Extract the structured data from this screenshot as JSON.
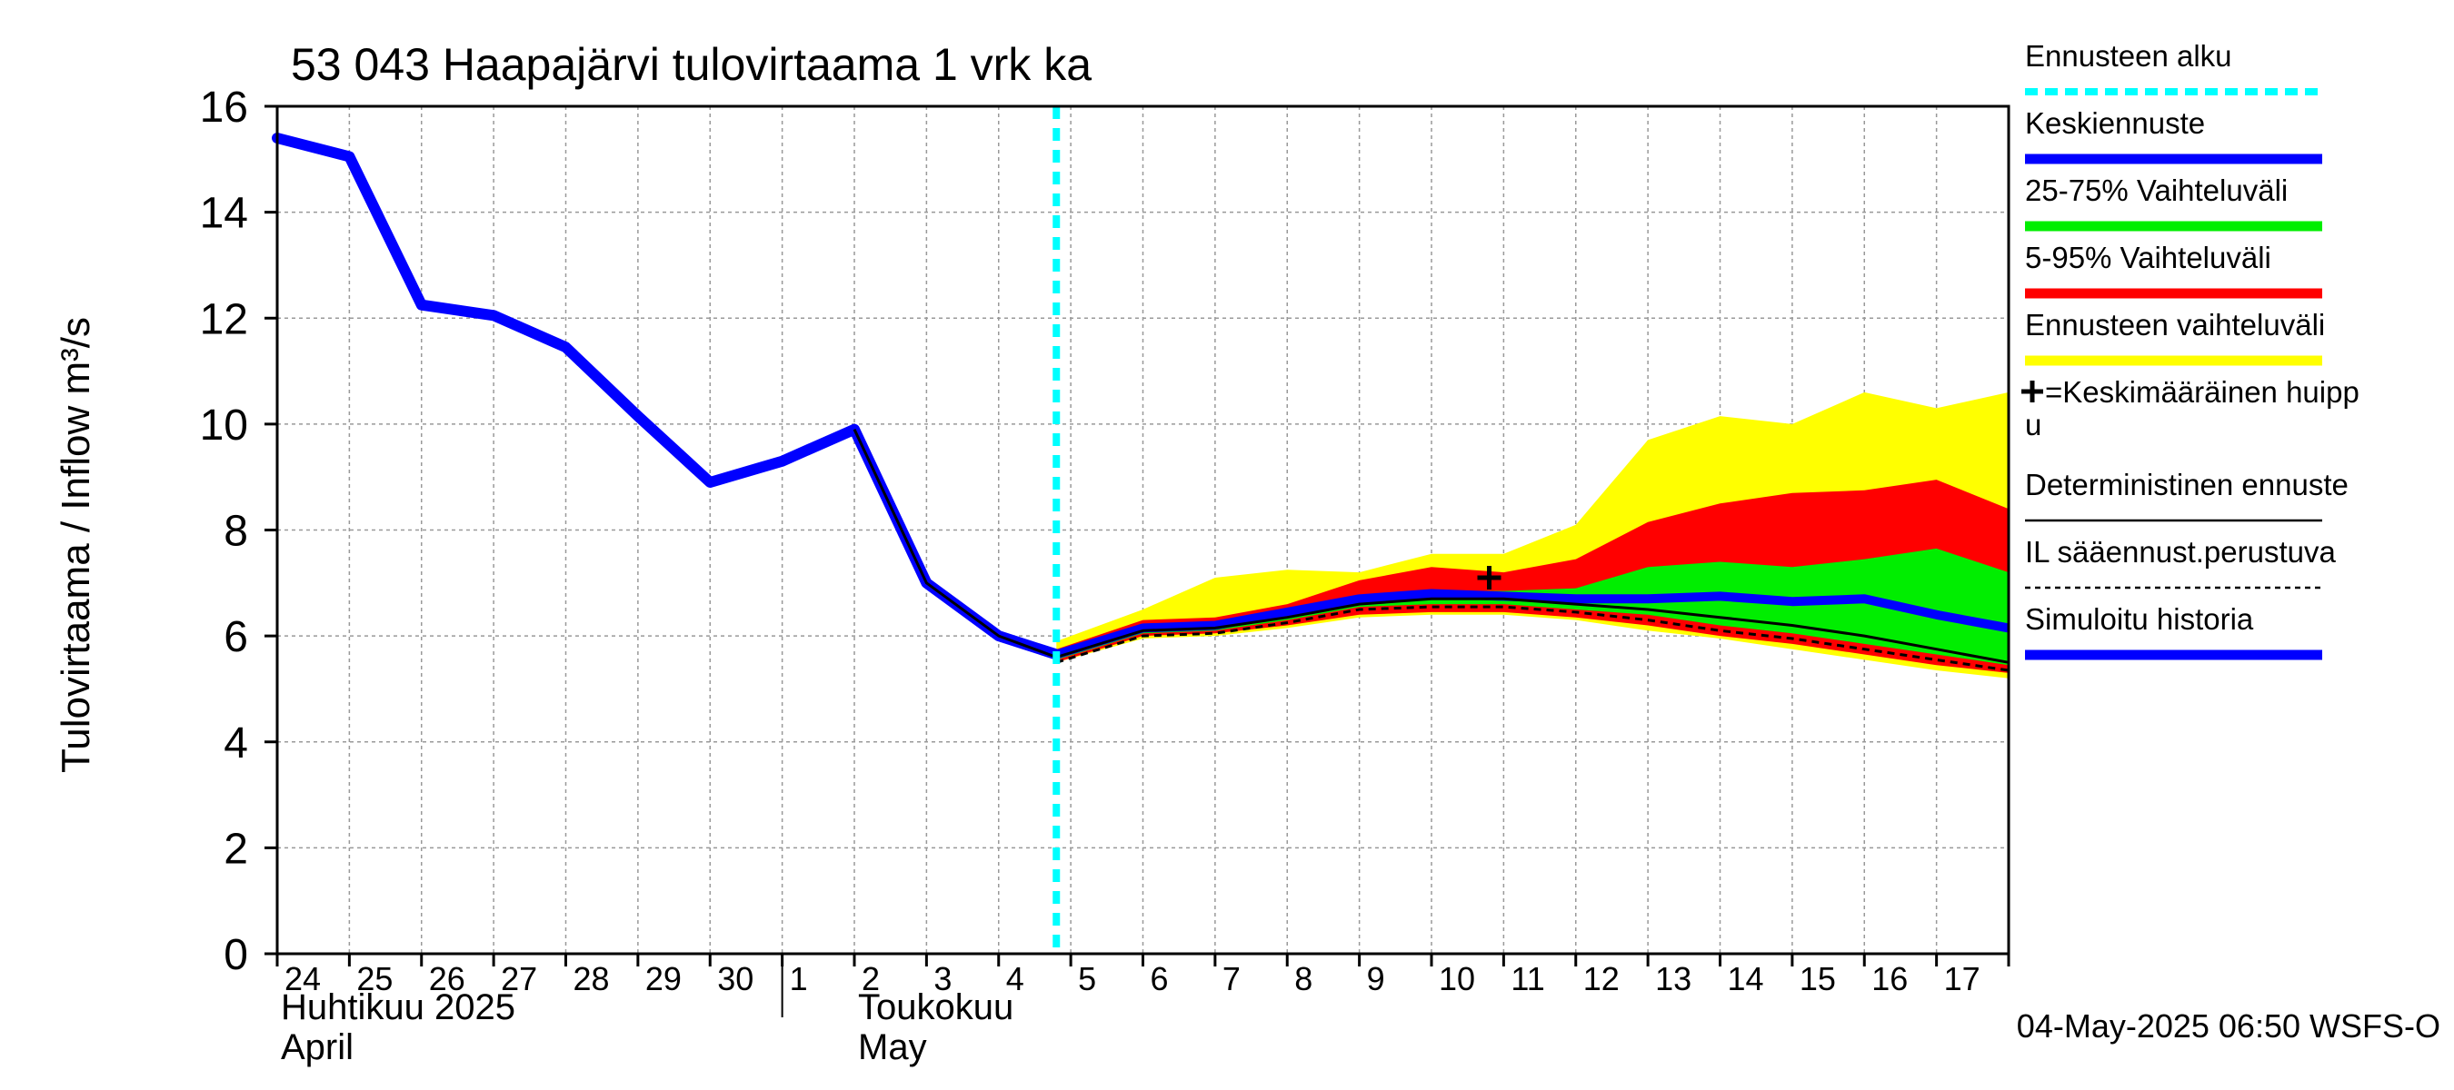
{
  "chart_data": {
    "type": "area",
    "title": "53 043 Haapajärvi tulovirtaama 1 vrk ka",
    "ylabel": "Tulovirtaama / Inflow    m³/s",
    "ylim": [
      0,
      16
    ],
    "yticks": [
      0,
      2,
      4,
      6,
      8,
      10,
      12,
      14,
      16
    ],
    "grid": true,
    "legend_position": "right",
    "x_tick_labels": [
      "24",
      "25",
      "26",
      "27",
      "28",
      "29",
      "30",
      "1",
      "2",
      "3",
      "4",
      "5",
      "6",
      "7",
      "8",
      "9",
      "10",
      "11",
      "12",
      "13",
      "14",
      "15",
      "16",
      "17"
    ],
    "month_labels": [
      {
        "fi": "Huhtikuu  2025",
        "en": "April"
      },
      {
        "fi": "Toukokuu",
        "en": "May"
      }
    ],
    "forecast_start_day": 10.8,
    "footer": "04-May-2025 06:50 WSFS-O",
    "series": [
      {
        "name": "Simuloitu historia",
        "color": "#0000ff",
        "x": [
          0,
          1,
          2,
          3,
          4,
          5,
          6,
          7,
          8,
          9,
          10,
          10.8
        ],
        "y": [
          15.4,
          15.05,
          12.25,
          12.05,
          11.45,
          10.15,
          8.9,
          9.3,
          9.9,
          7.0,
          6.0,
          5.65
        ]
      },
      {
        "name": "Ennusteen vaihteluväli",
        "color": "#ffff00",
        "x": [
          10.8,
          12,
          13,
          14,
          15,
          16,
          17,
          18,
          19,
          20,
          21,
          22,
          23,
          24
        ],
        "upper": [
          5.9,
          6.5,
          7.1,
          7.25,
          7.2,
          7.55,
          7.55,
          8.1,
          9.7,
          10.15,
          10.0,
          10.6,
          10.3,
          10.6
        ],
        "lower": [
          5.5,
          5.95,
          6.0,
          6.15,
          6.35,
          6.4,
          6.4,
          6.3,
          6.1,
          5.95,
          5.75,
          5.55,
          5.35,
          5.2
        ]
      },
      {
        "name": "5-95% Vaihteluväli",
        "color": "#ff0000",
        "x": [
          10.8,
          12,
          13,
          14,
          15,
          16,
          17,
          18,
          19,
          20,
          21,
          22,
          23,
          24
        ],
        "upper": [
          5.75,
          6.3,
          6.35,
          6.6,
          7.05,
          7.3,
          7.2,
          7.45,
          8.15,
          8.5,
          8.7,
          8.75,
          8.95,
          8.4
        ],
        "lower": [
          5.5,
          6.0,
          6.05,
          6.2,
          6.4,
          6.45,
          6.45,
          6.35,
          6.2,
          6.0,
          5.85,
          5.65,
          5.45,
          5.3
        ]
      },
      {
        "name": "25-75% Vaihteluväli",
        "color": "#00ee00",
        "x": [
          10.8,
          12,
          13,
          14,
          15,
          16,
          17,
          18,
          19,
          20,
          21,
          22,
          23,
          24
        ],
        "upper": [
          5.65,
          6.2,
          6.25,
          6.45,
          6.75,
          6.85,
          6.85,
          6.9,
          7.3,
          7.4,
          7.3,
          7.45,
          7.65,
          7.2
        ],
        "lower": [
          5.55,
          6.05,
          6.1,
          6.3,
          6.55,
          6.6,
          6.6,
          6.5,
          6.4,
          6.2,
          6.05,
          5.85,
          5.65,
          5.45
        ]
      },
      {
        "name": "Keskiennuste",
        "color": "#0000ff",
        "x": [
          10.8,
          12,
          13,
          14,
          15,
          16,
          17,
          18,
          19,
          20,
          21,
          22,
          23,
          24
        ],
        "y": [
          5.65,
          6.15,
          6.2,
          6.45,
          6.7,
          6.8,
          6.75,
          6.7,
          6.7,
          6.75,
          6.65,
          6.7,
          6.4,
          6.15
        ]
      },
      {
        "name": "Deterministinen ennuste",
        "color": "#000000",
        "x": [
          8,
          9,
          10,
          10.8,
          12,
          13,
          14,
          15,
          16,
          17,
          18,
          19,
          20,
          21,
          22,
          23,
          24
        ],
        "y": [
          9.9,
          7.0,
          6.0,
          5.6,
          6.1,
          6.15,
          6.35,
          6.6,
          6.7,
          6.7,
          6.6,
          6.5,
          6.35,
          6.2,
          6.0,
          5.75,
          5.5
        ]
      },
      {
        "name": "IL sääennust.perustuva",
        "color": "#000000",
        "dashed": true,
        "x": [
          10.8,
          12,
          13,
          14,
          15,
          16,
          17,
          18,
          19,
          20,
          21,
          22,
          23,
          24
        ],
        "y": [
          5.5,
          6.0,
          6.05,
          6.25,
          6.5,
          6.55,
          6.55,
          6.45,
          6.3,
          6.1,
          5.95,
          5.75,
          5.55,
          5.35
        ]
      },
      {
        "name": "=Keskimääräinen huippu",
        "marker": "+",
        "color": "#000000",
        "x": [
          16.8
        ],
        "y": [
          7.1
        ]
      }
    ],
    "legend": [
      {
        "label": "Ennusteen alku",
        "style": "dashed-cyan",
        "color": "#00ffff"
      },
      {
        "label": "Keskiennuste",
        "style": "thick",
        "color": "#0000ff"
      },
      {
        "label": "25-75% Vaihteluväli",
        "style": "thick",
        "color": "#00ee00"
      },
      {
        "label": "5-95% Vaihteluväli",
        "style": "thick",
        "color": "#ff0000"
      },
      {
        "label": "Ennusteen vaihteluväli",
        "style": "thick",
        "color": "#ffff00"
      },
      {
        "label": "=Keskimääräinen huipp",
        "label2": "u",
        "style": "plus",
        "color": "#000000"
      },
      {
        "label": "Deterministinen ennuste",
        "style": "thin",
        "color": "#000000"
      },
      {
        "label": "IL sääennust.perustuva",
        "style": "dashed-thin",
        "color": "#000000"
      },
      {
        "label": "Simuloitu historia",
        "style": "thick",
        "color": "#0000ff"
      }
    ]
  }
}
